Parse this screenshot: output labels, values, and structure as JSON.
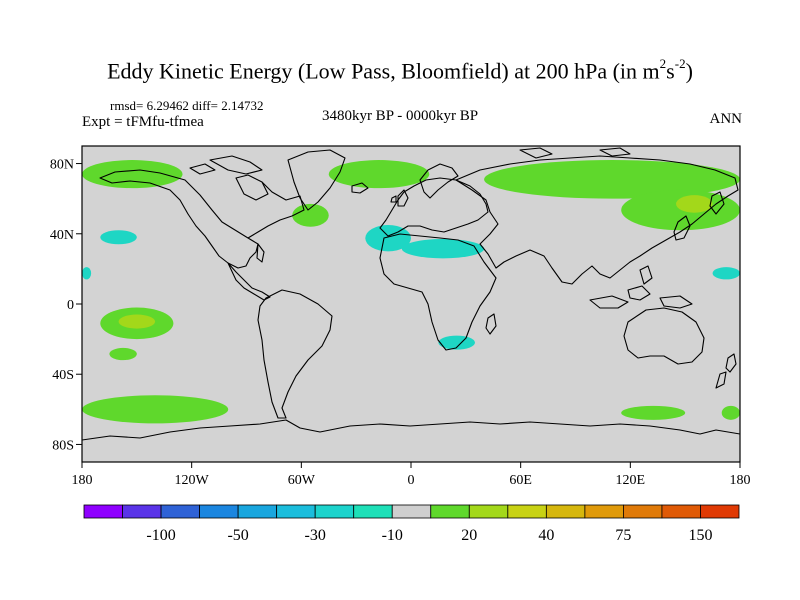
{
  "figure": {
    "title": "Eddy Kinetic Energy (Low Pass, Bloomfield) at 200 hPa (in m",
    "title_unit_sup1": "2",
    "title_unit_mid": "s",
    "title_unit_sup2": "-2",
    "title_close": ")",
    "stats": "rmsd= 6.29462 diff= 2.14732",
    "expt": "Expt = tFMfu-tfmea",
    "period": "3480kyr BP - 0000kyr BP",
    "season": "ANN"
  },
  "map": {
    "projection": "cylindrical equidistant",
    "lon_range": [
      -180,
      180
    ],
    "lat_range": [
      -90,
      90
    ],
    "background_color": "#d3d3d3",
    "x_ticks": [
      {
        "lon": -180,
        "label": "180"
      },
      {
        "lon": -120,
        "label": "120W"
      },
      {
        "lon": -60,
        "label": "60W"
      },
      {
        "lon": 0,
        "label": "0"
      },
      {
        "lon": 60,
        "label": "60E"
      },
      {
        "lon": 120,
        "label": "120E"
      },
      {
        "lon": 180,
        "label": "180"
      }
    ],
    "y_ticks": [
      {
        "lat": 80,
        "label": "80N"
      },
      {
        "lat": 40,
        "label": "40N"
      },
      {
        "lat": 0,
        "label": "0"
      },
      {
        "lat": -40,
        "label": "40S"
      },
      {
        "lat": -80,
        "label": "80S"
      }
    ],
    "anomaly_regions": [
      {
        "name": "arctic-north-america",
        "level": "10-20",
        "color": "#5fd82c",
        "lon": [
          -180,
          -125
        ],
        "lat": [
          66,
          82
        ]
      },
      {
        "name": "greenland-atlantic",
        "level": "10-20",
        "color": "#5fd82c",
        "lon": [
          -45,
          10
        ],
        "lat": [
          66,
          82
        ]
      },
      {
        "name": "north-atlantic-patch",
        "level": "10-20",
        "color": "#5fd82c",
        "lon": [
          -65,
          -45
        ],
        "lat": [
          44,
          57
        ]
      },
      {
        "name": "eurasian-arctic",
        "level": "10-20",
        "color": "#5fd82c",
        "lon": [
          40,
          180
        ],
        "lat": [
          60,
          82
        ]
      },
      {
        "name": "east-asia-pacific",
        "level": "10-20",
        "color": "#5fd82c",
        "lon": [
          115,
          180
        ],
        "lat": [
          42,
          65
        ]
      },
      {
        "name": "siberia-core",
        "level": "20-30",
        "color": "#a3d81a",
        "lon": [
          145,
          165
        ],
        "lat": [
          52,
          62
        ]
      },
      {
        "name": "central-pacific",
        "level": "10-20",
        "color": "#5fd82c",
        "lon": [
          -170,
          -130
        ],
        "lat": [
          -20,
          -2
        ]
      },
      {
        "name": "central-pacific-core",
        "level": "20-30",
        "color": "#a3d81a",
        "lon": [
          -160,
          -140
        ],
        "lat": [
          -14,
          -6
        ]
      },
      {
        "name": "south-pacific-small",
        "level": "10-20",
        "color": "#5fd82c",
        "lon": [
          -165,
          -150
        ],
        "lat": [
          -32,
          -25
        ]
      },
      {
        "name": "southern-ocean-west",
        "level": "10-20",
        "color": "#5fd82c",
        "lon": [
          -180,
          -100
        ],
        "lat": [
          -68,
          -52
        ]
      },
      {
        "name": "southern-ocean-east",
        "level": "10-20",
        "color": "#5fd82c",
        "lon": [
          115,
          150
        ],
        "lat": [
          -66,
          -58
        ]
      },
      {
        "name": "southern-ocean-dateline",
        "level": "10-20",
        "color": "#5fd82c",
        "lon": [
          170,
          180
        ],
        "lat": [
          -66,
          -58
        ]
      },
      {
        "name": "north-atlantic-negative",
        "level": "-20--10",
        "color": "#1ed6c4",
        "lon": [
          -25,
          0
        ],
        "lat": [
          30,
          45
        ]
      },
      {
        "name": "mediterranean-negative",
        "level": "-20--10",
        "color": "#1ed6c4",
        "lon": [
          -5,
          40
        ],
        "lat": [
          26,
          37
        ]
      },
      {
        "name": "west-pacific-negative",
        "level": "-20--10",
        "color": "#1ed6c4",
        "lon": [
          -170,
          -150
        ],
        "lat": [
          34,
          42
        ]
      },
      {
        "name": "east-pacific-negative",
        "level": "-20--10",
        "color": "#1ed6c4",
        "lon": [
          165,
          180
        ],
        "lat": [
          14,
          21
        ]
      },
      {
        "name": "africa-south-negative",
        "level": "-20--10",
        "color": "#1ed6c4",
        "lon": [
          15,
          35
        ],
        "lat": [
          -26,
          -18
        ]
      },
      {
        "name": "dateline-edge-negative",
        "level": "-20--10",
        "color": "#1ed6c4",
        "lon": [
          -180,
          -175
        ],
        "lat": [
          14,
          21
        ]
      }
    ]
  },
  "colorbar": {
    "colors": [
      "#8f00ff",
      "#5a34e8",
      "#2f62d6",
      "#1b86e0",
      "#19a6de",
      "#1bbddc",
      "#1cd3cc",
      "#1ee0b8",
      "#cfcfcf",
      "#5fd82c",
      "#a3d81a",
      "#c8d214",
      "#d6b70e",
      "#e09a0a",
      "#e07a08",
      "#e05a06",
      "#e03a04"
    ],
    "labels": [
      "-100",
      "-50",
      "-30",
      "-10",
      "20",
      "40",
      "75",
      "150"
    ],
    "label_after_box": [
      1,
      3,
      5,
      7,
      9,
      11,
      13,
      15
    ]
  }
}
